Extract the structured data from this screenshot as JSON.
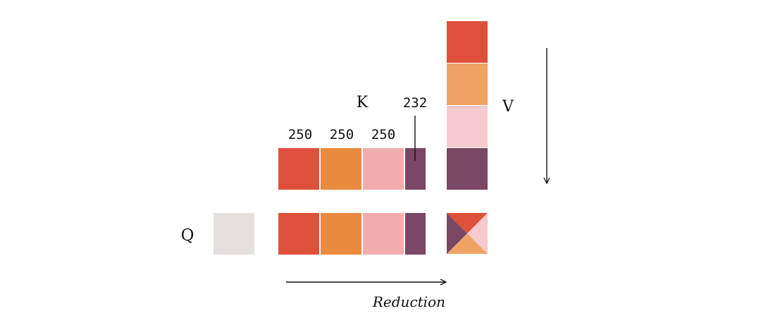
{
  "labels": {
    "q": "Q",
    "k": "K",
    "v": "V",
    "reduction": "Reduction"
  },
  "block_sizes": [
    "250",
    "250",
    "250",
    "232"
  ],
  "colors": {
    "red": "#DE5039",
    "orange_k": "#E98A3E",
    "orange_v": "#EFA364",
    "pink_k": "#F3ACAE",
    "pink_v": "#F7CBCD",
    "purple": "#7A4764",
    "q_gray": "#E5E0DD",
    "ink": "#111111"
  }
}
